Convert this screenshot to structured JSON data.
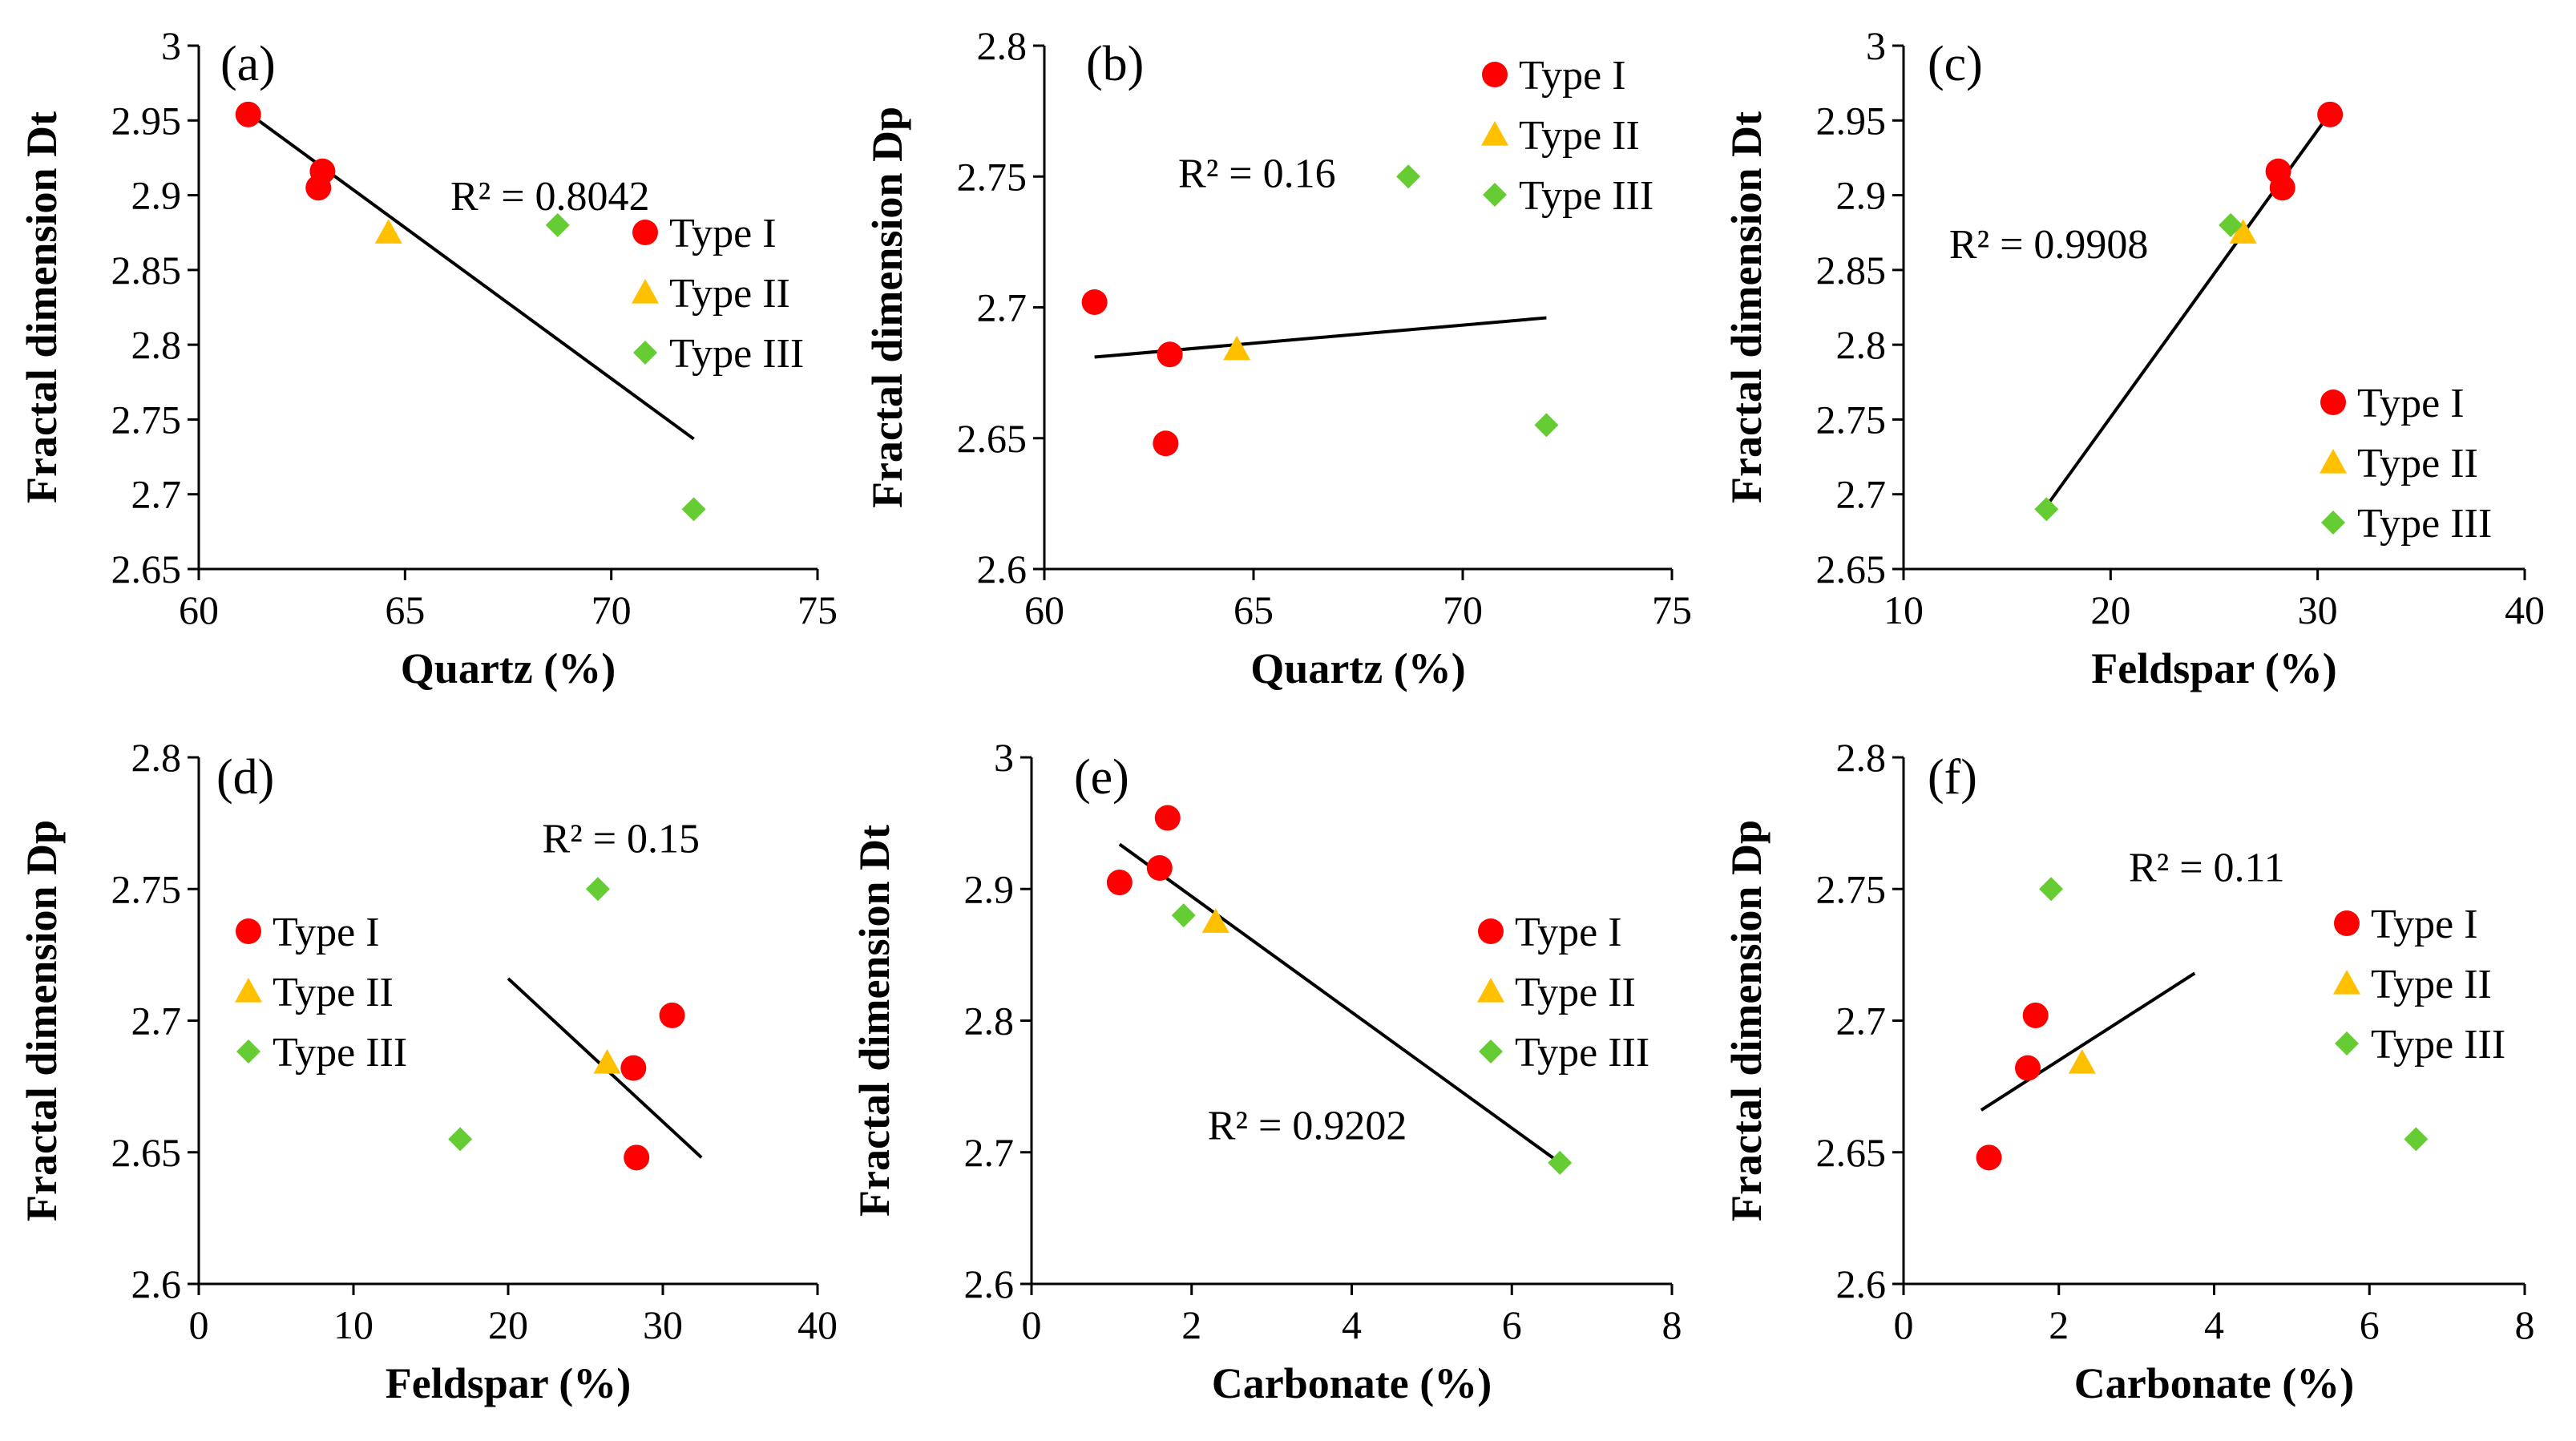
{
  "colors": {
    "Type I": "#ff0000",
    "Type II": "#ffc000",
    "Type III": "#66cc33",
    "axis": "#000000",
    "trendline": "#000000"
  },
  "chart_data": [
    {
      "type": "scatter",
      "panel": "(a)",
      "xlabel": "Quartz (%)",
      "ylabel": "Fractal dimension Dt",
      "xlim": [
        60,
        75
      ],
      "xticks": [
        60,
        65,
        70,
        75
      ],
      "ylim": [
        2.65,
        3
      ],
      "yticks": [
        2.65,
        2.7,
        2.75,
        2.8,
        2.85,
        2.9,
        2.95,
        3
      ],
      "yticklabels": [
        "2.65",
        "2.7",
        "2.75",
        "2.8",
        "2.85",
        "2.9",
        "2.95",
        "3"
      ],
      "series": [
        {
          "name": "Type I",
          "marker": "circle",
          "points": [
            [
              61.2,
              2.954
            ],
            [
              63.0,
              2.916
            ],
            [
              62.9,
              2.905
            ]
          ]
        },
        {
          "name": "Type II",
          "marker": "triangle",
          "points": [
            [
              64.6,
              2.875
            ]
          ]
        },
        {
          "name": "Type III",
          "marker": "diamond",
          "points": [
            [
              68.7,
              2.88
            ],
            [
              72.0,
              2.69
            ]
          ]
        }
      ],
      "trendline": [
        [
          61.2,
          2.955
        ],
        [
          72.0,
          2.737
        ]
      ],
      "r2_label": "R² = 0.8042",
      "r2_anchor": [
        66.1,
        2.89
      ],
      "legend_pos": "right-middle"
    },
    {
      "type": "scatter",
      "panel": "(b)",
      "xlabel": "Quartz (%)",
      "ylabel": "Fractal dimension Dp",
      "xlim": [
        60,
        75
      ],
      "xticks": [
        60,
        65,
        70,
        75
      ],
      "ylim": [
        2.6,
        2.8
      ],
      "yticks": [
        2.6,
        2.65,
        2.7,
        2.75,
        2.8
      ],
      "yticklabels": [
        "2.6",
        "2.65",
        "2.7",
        "2.75",
        "2.8"
      ],
      "series": [
        {
          "name": "Type I",
          "marker": "circle",
          "points": [
            [
              61.2,
              2.702
            ],
            [
              63.0,
              2.682
            ],
            [
              62.9,
              2.648
            ]
          ]
        },
        {
          "name": "Type II",
          "marker": "triangle",
          "points": [
            [
              64.6,
              2.684
            ]
          ]
        },
        {
          "name": "Type III",
          "marker": "diamond",
          "points": [
            [
              68.7,
              2.75
            ],
            [
              72.0,
              2.655
            ]
          ]
        }
      ],
      "trendline": [
        [
          61.2,
          2.681
        ],
        [
          72.0,
          2.696
        ]
      ],
      "r2_label": "R² = 0.16",
      "r2_anchor": [
        63.2,
        2.746
      ],
      "legend_pos": "top-right"
    },
    {
      "type": "scatter",
      "panel": "(c)",
      "xlabel": "Feldspar (%)",
      "ylabel": "Fractal dimension Dt",
      "xlim": [
        10,
        40
      ],
      "xticks": [
        10,
        20,
        30,
        40
      ],
      "ylim": [
        2.65,
        3
      ],
      "yticks": [
        2.65,
        2.7,
        2.75,
        2.8,
        2.85,
        2.9,
        2.95,
        3
      ],
      "yticklabels": [
        "2.65",
        "2.7",
        "2.75",
        "2.8",
        "2.85",
        "2.9",
        "2.95",
        "3"
      ],
      "series": [
        {
          "name": "Type I",
          "marker": "circle",
          "points": [
            [
              30.6,
              2.954
            ],
            [
              28.1,
              2.916
            ],
            [
              28.3,
              2.905
            ]
          ]
        },
        {
          "name": "Type II",
          "marker": "triangle",
          "points": [
            [
              26.4,
              2.875
            ]
          ]
        },
        {
          "name": "Type III",
          "marker": "diamond",
          "points": [
            [
              25.8,
              2.88
            ],
            [
              16.9,
              2.69
            ]
          ]
        }
      ],
      "trendline": [
        [
          16.9,
          2.692
        ],
        [
          30.6,
          2.955
        ]
      ],
      "r2_label": "R² = 0.9908",
      "r2_anchor": [
        12.2,
        2.858
      ],
      "legend_pos": "bottom-right"
    },
    {
      "type": "scatter",
      "panel": "(d)",
      "xlabel": "Feldspar (%)",
      "ylabel": "Fractal dimension Dp",
      "xlim": [
        0,
        40
      ],
      "xticks": [
        0,
        10,
        20,
        30,
        40
      ],
      "ylim": [
        2.6,
        2.8
      ],
      "yticks": [
        2.6,
        2.65,
        2.7,
        2.75,
        2.8
      ],
      "yticklabels": [
        "2.6",
        "2.65",
        "2.7",
        "2.75",
        "2.8"
      ],
      "series": [
        {
          "name": "Type I",
          "marker": "circle",
          "points": [
            [
              30.6,
              2.702
            ],
            [
              28.1,
              2.682
            ],
            [
              28.3,
              2.648
            ]
          ]
        },
        {
          "name": "Type II",
          "marker": "triangle",
          "points": [
            [
              26.4,
              2.684
            ]
          ]
        },
        {
          "name": "Type III",
          "marker": "diamond",
          "points": [
            [
              25.8,
              2.75
            ],
            [
              16.9,
              2.655
            ]
          ]
        }
      ],
      "trendline": [
        [
          20.0,
          2.716
        ],
        [
          32.5,
          2.648
        ]
      ],
      "r2_label": "R² = 0.15",
      "r2_anchor": [
        22.2,
        2.764
      ],
      "legend_pos": "left-middle"
    },
    {
      "type": "scatter",
      "panel": "(e)",
      "xlabel": "Carbonate (%)",
      "ylabel": "Fractal dimension Dt",
      "xlim": [
        0,
        8
      ],
      "xticks": [
        0,
        2,
        4,
        6,
        8
      ],
      "ylim": [
        2.6,
        3
      ],
      "yticks": [
        2.6,
        2.7,
        2.8,
        2.9,
        3
      ],
      "yticklabels": [
        "2.6",
        "2.7",
        "2.8",
        "2.9",
        "3"
      ],
      "series": [
        {
          "name": "Type I",
          "marker": "circle",
          "points": [
            [
              1.7,
              2.954
            ],
            [
              1.6,
              2.916
            ],
            [
              1.1,
              2.905
            ]
          ]
        },
        {
          "name": "Type II",
          "marker": "triangle",
          "points": [
            [
              2.3,
              2.875
            ]
          ]
        },
        {
          "name": "Type III",
          "marker": "diamond",
          "points": [
            [
              1.9,
              2.88
            ],
            [
              6.6,
              2.692
            ]
          ]
        }
      ],
      "trendline": [
        [
          1.1,
          2.934
        ],
        [
          6.6,
          2.692
        ]
      ],
      "r2_label": "R² = 0.9202",
      "r2_anchor": [
        2.2,
        2.71
      ],
      "legend_pos": "right-middle"
    },
    {
      "type": "scatter",
      "panel": "(f)",
      "xlabel": "Carbonate (%)",
      "ylabel": "Fractal dimension Dp",
      "xlim": [
        0,
        8
      ],
      "xticks": [
        0,
        2,
        4,
        6,
        8
      ],
      "ylim": [
        2.6,
        2.8
      ],
      "yticks": [
        2.6,
        2.65,
        2.7,
        2.75,
        2.8
      ],
      "yticklabels": [
        "2.6",
        "2.65",
        "2.7",
        "2.75",
        "2.8"
      ],
      "series": [
        {
          "name": "Type I",
          "marker": "circle",
          "points": [
            [
              1.7,
              2.702
            ],
            [
              1.6,
              2.682
            ],
            [
              1.1,
              2.648
            ]
          ]
        },
        {
          "name": "Type II",
          "marker": "triangle",
          "points": [
            [
              2.3,
              2.684
            ]
          ]
        },
        {
          "name": "Type III",
          "marker": "diamond",
          "points": [
            [
              1.9,
              2.75
            ],
            [
              6.6,
              2.655
            ]
          ]
        }
      ],
      "trendline": [
        [
          1.0,
          2.666
        ],
        [
          3.75,
          2.718
        ]
      ],
      "r2_label": "R² = 0.11",
      "r2_anchor": [
        2.9,
        2.753
      ],
      "legend_pos": "right-middle"
    }
  ]
}
